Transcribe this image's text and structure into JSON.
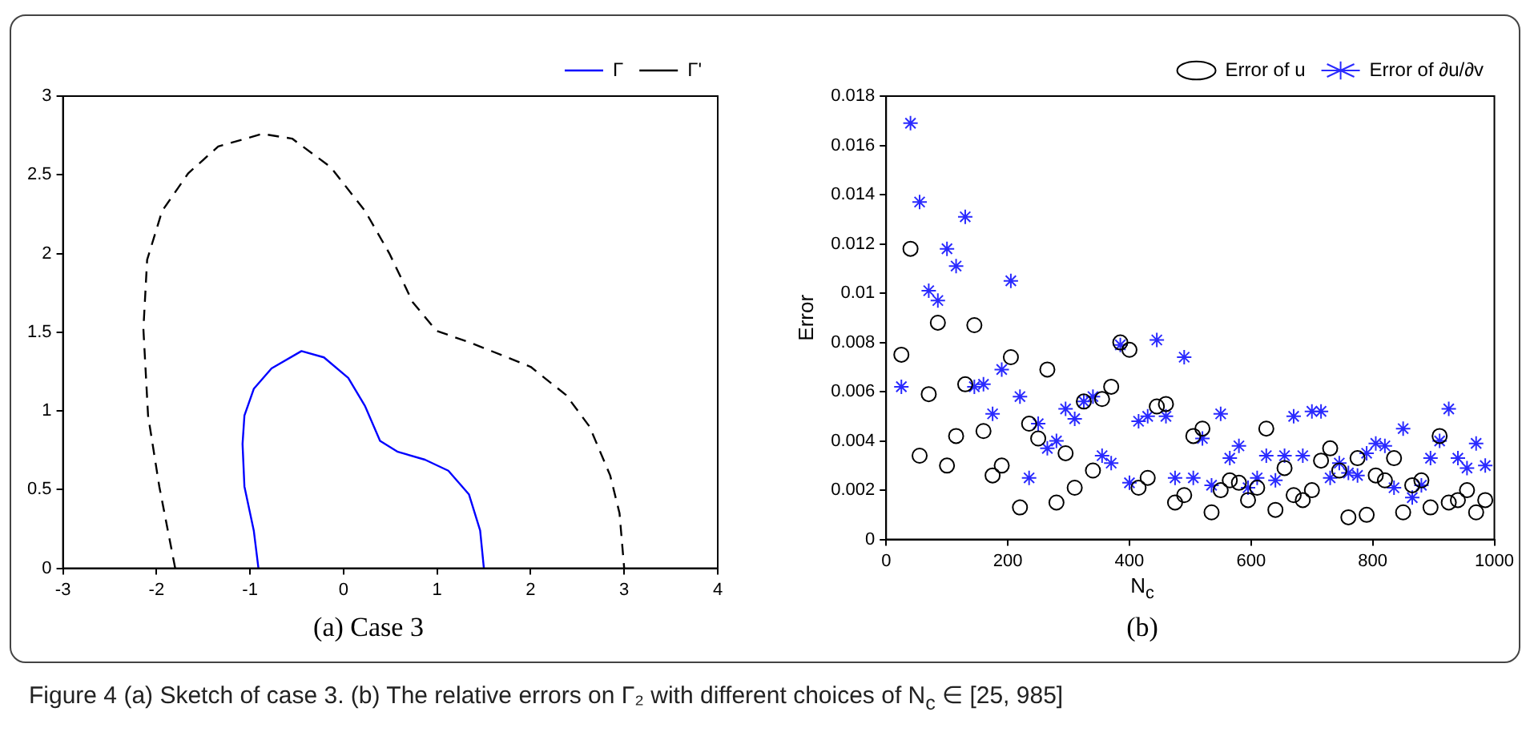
{
  "chart_data": [
    {
      "type": "line",
      "title": "(a)  Case 3",
      "xlim": [
        -3,
        4
      ],
      "ylim": [
        0,
        3
      ],
      "xticks": [
        -3,
        -2,
        -1,
        0,
        1,
        2,
        3,
        4
      ],
      "yticks": [
        0,
        0.5,
        1,
        1.5,
        2,
        2.5,
        3
      ],
      "grid": false,
      "legend": "top right",
      "marker": "none",
      "series": [
        {
          "name": "Γ",
          "color": "#0000ff",
          "line_style": "solid",
          "x": [
            -0.91,
            -0.96,
            -1.06,
            -1.08,
            -1.06,
            -0.96,
            -0.77,
            -0.45,
            -0.21,
            0.05,
            0.23,
            0.39,
            0.58,
            0.87,
            1.12,
            1.34,
            1.46,
            1.5
          ],
          "values": [
            0,
            0.24,
            0.52,
            0.79,
            0.97,
            1.14,
            1.27,
            1.38,
            1.34,
            1.21,
            1.03,
            0.81,
            0.74,
            0.69,
            0.62,
            0.47,
            0.24,
            0
          ]
        },
        {
          "name": "Γ'",
          "color": "#000000",
          "line_style": "dashed",
          "x": [
            -1.8,
            -1.97,
            -2.09,
            -2.14,
            -2.1,
            -1.94,
            -1.66,
            -1.34,
            -0.87,
            -0.55,
            -0.14,
            0.23,
            0.49,
            0.74,
            0.99,
            1.37,
            1.75,
            2.0,
            2.38,
            2.63,
            2.85,
            2.95,
            3.0
          ],
          "values": [
            0,
            0.52,
            0.97,
            1.52,
            1.96,
            2.27,
            2.51,
            2.68,
            2.76,
            2.73,
            2.55,
            2.27,
            2.0,
            1.69,
            1.51,
            1.43,
            1.34,
            1.28,
            1.1,
            0.9,
            0.59,
            0.35,
            0
          ]
        }
      ]
    },
    {
      "type": "scatter",
      "title": "(b)",
      "xlabel": "N$_{c}$",
      "ylabel": "Error",
      "xlim": [
        0,
        1000
      ],
      "ylim": [
        0,
        0.018
      ],
      "xticks": [
        0,
        200,
        400,
        600,
        800,
        1000
      ],
      "yticks": [
        0,
        0.002,
        0.004,
        0.006,
        0.008,
        0.01,
        0.012,
        0.014,
        0.016,
        0.018
      ],
      "grid": false,
      "legend": "top right",
      "x": [
        25,
        40,
        55,
        70,
        85,
        100,
        115,
        130,
        145,
        160,
        175,
        190,
        205,
        220,
        235,
        250,
        265,
        280,
        295,
        310,
        325,
        340,
        355,
        370,
        385,
        400,
        415,
        430,
        445,
        460,
        475,
        490,
        505,
        520,
        535,
        550,
        565,
        580,
        595,
        610,
        625,
        640,
        655,
        670,
        685,
        700,
        715,
        730,
        745,
        760,
        775,
        790,
        805,
        820,
        835,
        850,
        865,
        880,
        895,
        910,
        925,
        940,
        955,
        970,
        985
      ],
      "annotations": [
        "Figure 4  (a) Sketch of case 3. (b) The relative errors on Γ₂ with different choices of N$_{c}$ ∈ [25, 985]"
      ],
      "series": [
        {
          "name": "Error of u",
          "color": "#000000",
          "marker": "circle",
          "values": [
            0.0075,
            0.0118,
            0.0034,
            0.0059,
            0.0088,
            0.003,
            0.0042,
            0.0063,
            0.0087,
            0.0044,
            0.0026,
            0.003,
            0.0074,
            0.0013,
            0.0047,
            0.0041,
            0.0069,
            0.0015,
            0.0035,
            0.0021,
            0.0056,
            0.0028,
            0.0057,
            0.0062,
            0.008,
            0.0077,
            0.0021,
            0.0025,
            0.0054,
            0.0055,
            0.0015,
            0.0018,
            0.0042,
            0.0045,
            0.0011,
            0.002,
            0.0024,
            0.0023,
            0.0016,
            0.0021,
            0.0045,
            0.0012,
            0.0029,
            0.0018,
            0.0016,
            0.002,
            0.0032,
            0.0037,
            0.0028,
            0.0009,
            0.0033,
            0.001,
            0.0026,
            0.0024,
            0.0033,
            0.0011,
            0.0022,
            0.0024,
            0.0013,
            0.0042,
            0.0015,
            0.0016,
            0.002,
            0.0011,
            0.0016
          ]
        },
        {
          "name": "Error of ∂u/∂v",
          "color": "#2a2aff",
          "marker": "cross",
          "values": [
            0.0062,
            0.0169,
            0.0137,
            0.0101,
            0.0097,
            0.0118,
            0.0111,
            0.0131,
            0.0062,
            0.0063,
            0.0051,
            0.0069,
            0.0105,
            0.0058,
            0.0025,
            0.0047,
            0.0037,
            0.004,
            0.0053,
            0.0049,
            0.0056,
            0.0058,
            0.0034,
            0.0031,
            0.0079,
            0.0023,
            0.0048,
            0.005,
            0.0081,
            0.005,
            0.0025,
            0.0074,
            0.0025,
            0.0041,
            0.0022,
            0.0051,
            0.0033,
            0.0038,
            0.0021,
            0.0025,
            0.0034,
            0.0024,
            0.0034,
            0.005,
            0.0034,
            0.0052,
            0.0052,
            0.0025,
            0.0031,
            0.0027,
            0.0026,
            0.0035,
            0.0039,
            0.0038,
            0.0021,
            0.0045,
            0.0017,
            0.0022,
            0.0033,
            0.004,
            0.0053,
            0.0033,
            0.0029,
            0.0039,
            0.003
          ]
        }
      ]
    }
  ]
}
